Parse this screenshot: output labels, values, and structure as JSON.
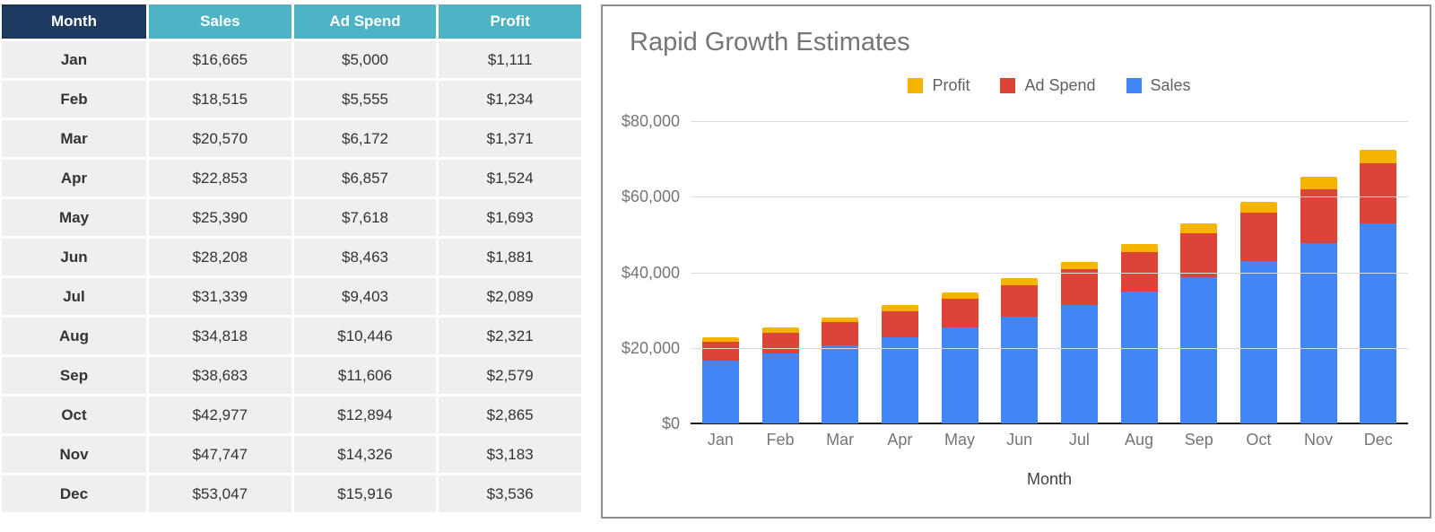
{
  "table": {
    "headers": [
      "Month",
      "Sales",
      "Ad Spend",
      "Profit"
    ],
    "rows": [
      {
        "month": "Jan",
        "sales": "$16,665",
        "ad_spend": "$5,000",
        "profit": "$1,111"
      },
      {
        "month": "Feb",
        "sales": "$18,515",
        "ad_spend": "$5,555",
        "profit": "$1,234"
      },
      {
        "month": "Mar",
        "sales": "$20,570",
        "ad_spend": "$6,172",
        "profit": "$1,371"
      },
      {
        "month": "Apr",
        "sales": "$22,853",
        "ad_spend": "$6,857",
        "profit": "$1,524"
      },
      {
        "month": "May",
        "sales": "$25,390",
        "ad_spend": "$7,618",
        "profit": "$1,693"
      },
      {
        "month": "Jun",
        "sales": "$28,208",
        "ad_spend": "$8,463",
        "profit": "$1,881"
      },
      {
        "month": "Jul",
        "sales": "$31,339",
        "ad_spend": "$9,403",
        "profit": "$2,089"
      },
      {
        "month": "Aug",
        "sales": "$34,818",
        "ad_spend": "$10,446",
        "profit": "$2,321"
      },
      {
        "month": "Sep",
        "sales": "$38,683",
        "ad_spend": "$11,606",
        "profit": "$2,579"
      },
      {
        "month": "Oct",
        "sales": "$42,977",
        "ad_spend": "$12,894",
        "profit": "$2,865"
      },
      {
        "month": "Nov",
        "sales": "$47,747",
        "ad_spend": "$14,326",
        "profit": "$3,183"
      },
      {
        "month": "Dec",
        "sales": "$53,047",
        "ad_spend": "$15,916",
        "profit": "$3,536"
      }
    ]
  },
  "chart": {
    "title": "Rapid Growth Estimates",
    "x_axis_title": "Month",
    "y_ticks": [
      {
        "label": "$80,000",
        "value": 80000
      },
      {
        "label": "$60,000",
        "value": 60000
      },
      {
        "label": "$40,000",
        "value": 40000
      },
      {
        "label": "$20,000",
        "value": 20000
      },
      {
        "label": "$0",
        "value": 0
      }
    ],
    "legend": [
      {
        "label": "Profit",
        "color": "#F4B400"
      },
      {
        "label": "Ad Spend",
        "color": "#DB4437"
      },
      {
        "label": "Sales",
        "color": "#4285F4"
      }
    ]
  },
  "chart_data": {
    "type": "bar",
    "stacked": true,
    "title": "Rapid Growth Estimates",
    "xlabel": "Month",
    "ylabel": "",
    "ylim": [
      0,
      80000
    ],
    "grid": true,
    "legend_position": "top",
    "categories": [
      "Jan",
      "Feb",
      "Mar",
      "Apr",
      "May",
      "Jun",
      "Jul",
      "Aug",
      "Sep",
      "Oct",
      "Nov",
      "Dec"
    ],
    "series": [
      {
        "name": "Sales",
        "color": "#4285F4",
        "values": [
          16665,
          18515,
          20570,
          22853,
          25390,
          28208,
          31339,
          34818,
          38683,
          42977,
          47747,
          53047
        ]
      },
      {
        "name": "Ad Spend",
        "color": "#DB4437",
        "values": [
          5000,
          5555,
          6172,
          6857,
          7618,
          8463,
          9403,
          10446,
          11606,
          12894,
          14326,
          15916
        ]
      },
      {
        "name": "Profit",
        "color": "#F4B400",
        "values": [
          1111,
          1234,
          1371,
          1524,
          1693,
          1881,
          2089,
          2321,
          2579,
          2865,
          3183,
          3536
        ]
      }
    ]
  },
  "colors": {
    "header_month_bg": "#1E3A60",
    "header_metric_bg": "#4FB3C6",
    "row_bg": "#EFEFEF",
    "cell_text": "#333333",
    "panel_border": "#8F8F8F",
    "gridline": "#DBDBDB",
    "axis": "#1A1A1A",
    "title_text": "#757575",
    "tick_text": "#757575",
    "legend_text": "#616161"
  }
}
